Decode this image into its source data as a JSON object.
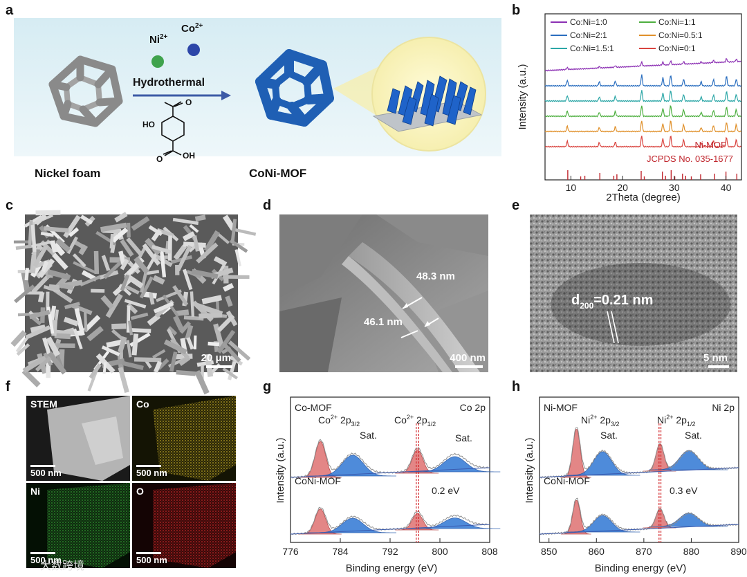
{
  "panels": {
    "a": "a",
    "b": "b",
    "c": "c",
    "d": "d",
    "e": "e",
    "f": "f",
    "g": "g",
    "h": "h"
  },
  "panel_a": {
    "ni_ion": "Ni",
    "ni_charge": "2+",
    "co_ion": "Co",
    "co_charge": "2+",
    "process": "Hydrothermal",
    "ho_label": "HO",
    "oh_label": "OH",
    "o_top": "O",
    "o_bottom": "O",
    "left_caption": "Nickel foam",
    "right_caption": "CoNi-MOF",
    "colors": {
      "ni": "#3fa34d",
      "co": "#2c46a8",
      "mof": "#1f5fb4",
      "foam": "#8a8a8a"
    }
  },
  "chart_data": {
    "type": "line",
    "xlabel": "2Theta (degree)",
    "ylabel": "Intensity (a.u.)",
    "xlim": [
      5,
      43
    ],
    "x_ticks": [
      "10",
      "20",
      "30",
      "40"
    ],
    "legend_position": "top",
    "series": [
      {
        "name": "Co:Ni=1:0",
        "color": "#8b2fb3",
        "offset": 6
      },
      {
        "name": "Co:Ni=2:1",
        "color": "#2a6ebf",
        "offset": 5
      },
      {
        "name": "Co:Ni=1.5:1",
        "color": "#2ca7a7",
        "offset": 4
      },
      {
        "name": "Co:Ni=1:1",
        "color": "#4cae3e",
        "offset": 3
      },
      {
        "name": "Co:Ni=0.5:1",
        "color": "#e0902a",
        "offset": 2
      },
      {
        "name": "Co:Ni=0:1",
        "color": "#d9443f",
        "offset": 1
      }
    ],
    "peaks_deg": [
      9.3,
      15.5,
      18.6,
      23.7,
      27.8,
      29.3,
      31.8,
      35.2,
      37.6,
      40.1,
      42.0
    ],
    "reference_label_1": "Ni-MOF",
    "reference_label_2": "JCPDS No. 035-1677",
    "reference_sticks_deg": [
      9.4,
      11.9,
      12.7,
      15.6,
      18.3,
      18.9,
      23.6,
      24.2,
      27.7,
      28.3,
      29.4,
      30.1,
      31.6,
      32.2,
      33.3,
      35.1,
      37.8,
      40.0,
      42.1
    ],
    "reference_color": "#c0262d"
  },
  "panel_c": {
    "scale": "20 μm"
  },
  "panel_d": {
    "scale": "400 nm",
    "thick1": "48.3 nm",
    "thick2": "46.1 nm"
  },
  "panel_e": {
    "scale": "5 nm",
    "d_main": "d",
    "d_sub": "200",
    "d_val": "=0.21 nm"
  },
  "panel_f": {
    "tiles": [
      {
        "label": "STEM",
        "scale": "500 nm"
      },
      {
        "label": "Co",
        "scale": "500 nm"
      },
      {
        "label": "Ni",
        "scale": "500 nm"
      },
      {
        "label": "O",
        "scale": "500 nm"
      }
    ],
    "colors": {
      "co": "#b9a322",
      "ni": "#2f9a2f",
      "o": "#c22424"
    }
  },
  "panel_g": {
    "xlabel": "Binding energy (eV)",
    "ylabel": "Intensity (a.u.)",
    "x_ticks": [
      "776",
      "784",
      "792",
      "800",
      "808"
    ],
    "xlim": [
      776,
      808
    ],
    "corner": "Co 2p",
    "top_sample": "Co-MOF",
    "bottom_sample": "CoNi-MOF",
    "peak1_main": "Co",
    "peak1_sup": "2+",
    "peak1_orb": " 2p",
    "peak1_sub": "3/2",
    "peak2_main": "Co",
    "peak2_sup": "2+",
    "peak2_orb": " 2p",
    "peak2_sub": "1/2",
    "sat1": "Sat.",
    "sat2": "Sat.",
    "shift": "0.2 eV"
  },
  "panel_h": {
    "xlabel": "Binding energy (eV)",
    "ylabel": "Intensity (a.u.)",
    "x_ticks": [
      "850",
      "860",
      "870",
      "880",
      "890"
    ],
    "xlim": [
      848,
      890
    ],
    "corner": "Ni 2p",
    "top_sample": "Ni-MOF",
    "bottom_sample": "CoNi-MOF",
    "peak1_main": "Ni",
    "peak1_sup": "2+",
    "peak1_orb": " 2p",
    "peak1_sub": "3/2",
    "peak2_main": "Ni",
    "peak2_sup": "2+",
    "peak2_orb": " 2p",
    "peak2_sub": "1/2",
    "sat1": "Sat.",
    "sat2": "Sat.",
    "shift": "0.3 eV"
  },
  "watermark": "大数跨境"
}
